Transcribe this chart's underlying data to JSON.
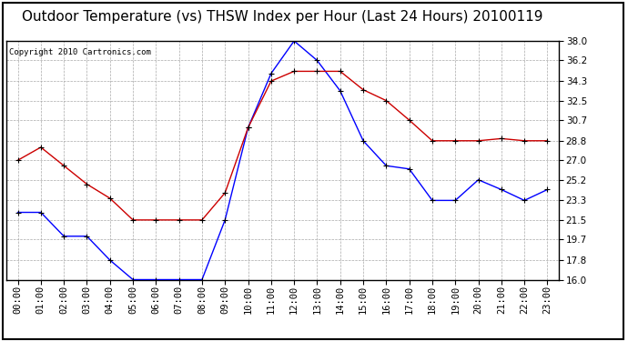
{
  "title": "Outdoor Temperature (vs) THSW Index per Hour (Last 24 Hours) 20100119",
  "copyright_text": "Copyright 2010 Cartronics.com",
  "hours": [
    "00:00",
    "01:00",
    "02:00",
    "03:00",
    "04:00",
    "05:00",
    "06:00",
    "07:00",
    "08:00",
    "09:00",
    "10:00",
    "11:00",
    "12:00",
    "13:00",
    "14:00",
    "15:00",
    "16:00",
    "17:00",
    "18:00",
    "19:00",
    "20:00",
    "21:00",
    "22:00",
    "23:00"
  ],
  "blue_line": [
    22.2,
    22.2,
    20.0,
    20.0,
    17.8,
    16.0,
    16.0,
    16.0,
    16.0,
    21.5,
    30.0,
    35.0,
    38.0,
    36.2,
    33.4,
    28.8,
    26.5,
    26.2,
    23.3,
    23.3,
    25.2,
    24.3,
    23.3,
    24.3
  ],
  "red_line": [
    27.0,
    28.2,
    26.5,
    24.8,
    23.5,
    21.5,
    21.5,
    21.5,
    21.5,
    24.0,
    30.0,
    34.3,
    35.2,
    35.2,
    35.2,
    33.5,
    32.5,
    30.7,
    28.8,
    28.8,
    28.8,
    29.0,
    28.8,
    28.8
  ],
  "ylim_min": 16.0,
  "ylim_max": 38.0,
  "yticks": [
    16.0,
    17.8,
    19.7,
    21.5,
    23.3,
    25.2,
    27.0,
    28.8,
    30.7,
    32.5,
    34.3,
    36.2,
    38.0
  ],
  "blue_color": "#0000ff",
  "red_color": "#cc0000",
  "marker": "+",
  "marker_size": 5,
  "grid_color": "#aaaaaa",
  "background_color": "#ffffff",
  "title_fontsize": 11,
  "axes_fontsize": 7.5
}
